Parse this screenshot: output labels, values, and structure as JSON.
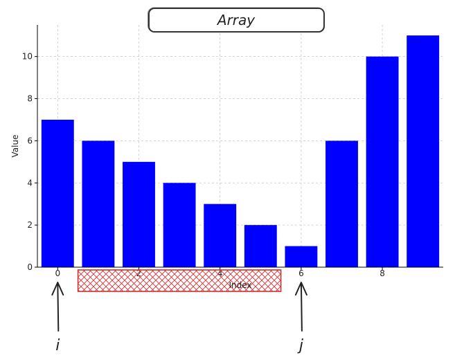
{
  "chart_data": {
    "type": "bar",
    "title": "Array",
    "xlabel": "Index",
    "ylabel": "Value",
    "categories": [
      0,
      1,
      2,
      3,
      4,
      5,
      6,
      7,
      8,
      9
    ],
    "values": [
      7,
      6,
      5,
      4,
      3,
      2,
      1,
      6,
      10,
      11
    ],
    "x_ticks": [
      0,
      2,
      4,
      6,
      8
    ],
    "y_ticks": [
      0,
      2,
      4,
      6,
      8,
      10
    ],
    "xlim": [
      -0.5,
      9.5
    ],
    "ylim": [
      0,
      11.5
    ],
    "grid": true,
    "bar_color": "#0000ff",
    "annotations": {
      "hatched_range": {
        "from_index": 0.5,
        "to_index": 5.5,
        "color": "#d32f2f"
      },
      "pointer_i": {
        "label": "i",
        "index": 0
      },
      "pointer_j": {
        "label": "j",
        "index": 6
      }
    }
  }
}
